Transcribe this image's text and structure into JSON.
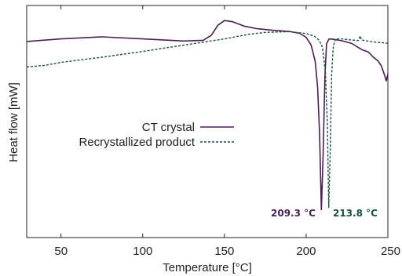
{
  "chart_data": {
    "type": "line",
    "xlabel": "Temperature [°C]",
    "ylabel": "Heat flow [mW]",
    "xlim": [
      29,
      250
    ],
    "ylim": [
      0,
      100
    ],
    "xticks": [
      50,
      100,
      150,
      200,
      250
    ],
    "yticks_visible": false,
    "grid": false,
    "legend_position": "center-right",
    "series": [
      {
        "name": "CT crystal",
        "style": "solid",
        "color": "#4a1e52",
        "x": [
          29,
          50,
          75,
          100,
          125,
          137,
          142,
          146,
          150,
          155,
          162,
          170,
          180,
          190,
          196,
          200,
          203,
          205.5,
          207,
          208.2,
          209.3,
          210.3,
          211.5,
          212.5,
          214,
          217,
          222,
          228,
          234,
          238,
          241,
          244,
          246,
          248,
          249,
          250
        ],
        "y": [
          84.5,
          85.6,
          86.5,
          85.6,
          84.7,
          85.0,
          87.2,
          91.5,
          93.5,
          93.0,
          91.1,
          90.0,
          89.3,
          88.8,
          88.0,
          86.3,
          83.0,
          76.0,
          65.0,
          45.0,
          12.0,
          34.0,
          70.0,
          83.5,
          85.6,
          85.4,
          84.8,
          83.6,
          81.0,
          80.0,
          77.8,
          76.1,
          74.0,
          70.0,
          67.5,
          70.5
        ]
      },
      {
        "name": "Recrystallized product",
        "style": "dashed",
        "color": "#1e4d44",
        "x": [
          29,
          40,
          50,
          75,
          100,
          125,
          150,
          165,
          175,
          190,
          200,
          205,
          208,
          210,
          211.8,
          213.0,
          213.8,
          214.7,
          215.6,
          216.6,
          218,
          222,
          228,
          232,
          233,
          234,
          240,
          250
        ],
        "y": [
          73.5,
          74.2,
          75.5,
          77.7,
          80.2,
          82.9,
          85.6,
          87.6,
          88.4,
          88.7,
          87.9,
          86.8,
          85.0,
          82.0,
          71.0,
          48.0,
          13.0,
          36.0,
          70.0,
          82.5,
          85.6,
          85.6,
          85.1,
          84.9,
          86.9,
          85.1,
          84.4,
          83.7
        ]
      }
    ],
    "annotations": [
      {
        "text": "209.3 °C",
        "x": 209.3,
        "color": "#4a1e52"
      },
      {
        "text": "213.8 °C",
        "x": 213.8,
        "color": "#1e4d44"
      }
    ]
  }
}
